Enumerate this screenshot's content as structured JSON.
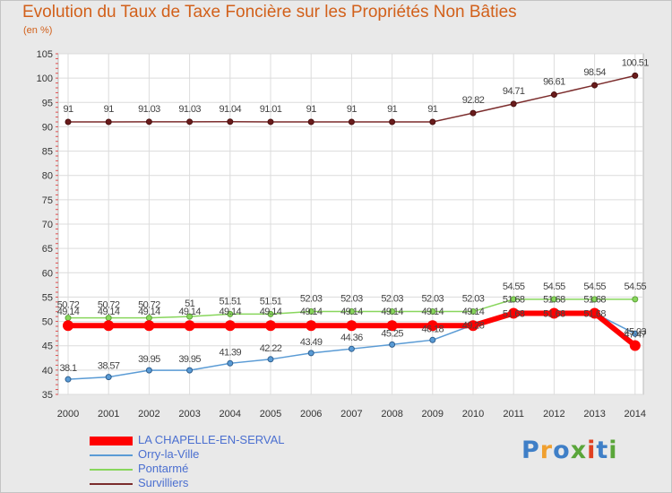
{
  "title": "Evolution du Taux de Taxe Foncière sur les Propriétés Non Bâties",
  "unit": "(en %)",
  "logo": {
    "text": "Proxiti",
    "colors": [
      "#3f7fc7",
      "#f0a030",
      "#3f7fc7",
      "#5aa63a",
      "#e04020",
      "#3f7fc7",
      "#5aa63a"
    ]
  },
  "chart_data": {
    "type": "line",
    "x": [
      "2000",
      "2001",
      "2002",
      "2003",
      "2004",
      "2005",
      "2006",
      "2007",
      "2008",
      "2009",
      "2010",
      "2011",
      "2012",
      "2013",
      "2014"
    ],
    "ylim": [
      35,
      105
    ],
    "yticks": [
      35,
      40,
      45,
      50,
      55,
      60,
      65,
      70,
      75,
      80,
      85,
      90,
      95,
      100,
      105
    ],
    "grid": true,
    "legend_position": "bottom-left",
    "series": [
      {
        "name": "LA CHAPELLE-EN-SERVAL",
        "color": "#ff0000",
        "values": [
          49.14,
          49.14,
          49.14,
          49.14,
          49.14,
          49.14,
          49.14,
          49.14,
          49.14,
          49.14,
          49.14,
          51.68,
          51.68,
          51.68,
          45.03
        ],
        "labels": [
          "49.14",
          "49.14",
          "49.14",
          "49.14",
          "49.14",
          "49.14",
          "49.14",
          "49.14",
          "49.14",
          "49.14",
          "49.14",
          "51.68",
          "51.68",
          "51.68",
          "45.03"
        ]
      },
      {
        "name": "Orry-la-Ville",
        "color": "#5a9bd5",
        "values": [
          38.1,
          38.57,
          39.95,
          39.95,
          41.39,
          42.22,
          43.49,
          44.36,
          45.25,
          46.18,
          49.28,
          51.68,
          51.68,
          51.68,
          47.47
        ],
        "labels": [
          "38.1",
          "38.57",
          "39.95",
          "39.95",
          "41.39",
          "42.22",
          "43.49",
          "44.36",
          "45.25",
          "46.18",
          "49.28",
          "51.68",
          "51.68",
          "51.68",
          "47.47"
        ]
      },
      {
        "name": "Pontarmé",
        "color": "#88d65c",
        "values": [
          50.72,
          50.72,
          50.72,
          51,
          51.51,
          51.51,
          52.03,
          52.03,
          52.03,
          52.03,
          52.03,
          54.55,
          54.55,
          54.55,
          54.55
        ],
        "labels": [
          "50.72",
          "50.72",
          "50.72",
          "51",
          "51.51",
          "51.51",
          "52.03",
          "52.03",
          "52.03",
          "52.03",
          "52.03",
          "54.55",
          "54.55",
          "54.55",
          "54.55"
        ]
      },
      {
        "name": "Survilliers",
        "color": "#7b2c2c",
        "values": [
          91,
          91,
          91.03,
          91.03,
          91.04,
          91.01,
          91,
          91,
          91,
          91,
          92.82,
          94.71,
          96.61,
          98.54,
          100.51
        ],
        "labels": [
          "91",
          "91",
          "91.03",
          "91.03",
          "91.04",
          "91.01",
          "91",
          "91",
          "91",
          "91",
          "92.82",
          "94.71",
          "96.61",
          "98.54",
          "100.51"
        ]
      }
    ]
  }
}
